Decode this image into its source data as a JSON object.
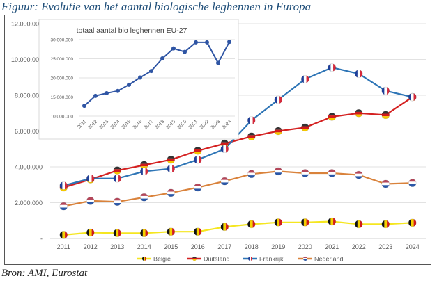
{
  "figure_title": "Figuur: Evolutie van het aantal biologische leghennen in Europa",
  "source": "Bron: AMI, Eurostat",
  "chart_data": [
    {
      "type": "line",
      "title": "",
      "xlabel": "",
      "ylabel": "",
      "x": [
        "2011",
        "2012",
        "2013",
        "2014",
        "2015",
        "2016",
        "2017",
        "2018",
        "2019",
        "2020",
        "2021",
        "2022",
        "2023",
        "2024"
      ],
      "y_ticks": [
        0,
        2000000,
        4000000,
        6000000,
        8000000,
        10000000,
        12000000
      ],
      "y_tick_labels": [
        "-",
        "2.000.000",
        "4.000.000",
        "6.000.000",
        "8.000.000",
        "10.000.000",
        "12.000.000"
      ],
      "ylim": [
        0,
        12000000
      ],
      "grid": true,
      "legend_position": "bottom",
      "series": [
        {
          "name": "België",
          "color": "#f5e620",
          "marker": "flag-be",
          "values": [
            200000,
            330000,
            300000,
            300000,
            380000,
            380000,
            650000,
            800000,
            900000,
            900000,
            950000,
            800000,
            800000,
            880000
          ]
        },
        {
          "name": "Duitsland",
          "color": "#d42020",
          "marker": "flag-de",
          "values": [
            2850000,
            3300000,
            3800000,
            4100000,
            4400000,
            4900000,
            5300000,
            5700000,
            6000000,
            6200000,
            6800000,
            7000000,
            6900000,
            7900000
          ]
        },
        {
          "name": "Frankrijk",
          "color": "#2e75b6",
          "marker": "flag-fr",
          "values": [
            2950000,
            3350000,
            3350000,
            3750000,
            3900000,
            4400000,
            5000000,
            6600000,
            7750000,
            8900000,
            9550000,
            9200000,
            8250000,
            7900000
          ]
        },
        {
          "name": "Nederland",
          "color": "#d9823b",
          "marker": "flag-nl",
          "values": [
            1800000,
            2100000,
            2050000,
            2300000,
            2550000,
            2850000,
            3200000,
            3600000,
            3750000,
            3650000,
            3650000,
            3550000,
            3050000,
            3100000
          ]
        }
      ]
    },
    {
      "type": "line",
      "title": "totaal aantal bio leghennen EU-27",
      "xlabel": "",
      "ylabel": "",
      "x": [
        "2011",
        "2012",
        "2013",
        "2014",
        "2015",
        "2016",
        "2017",
        "2018",
        "2019",
        "2020",
        "2021",
        "2022",
        "2023",
        "2024"
      ],
      "y_ticks": [
        10000000,
        15000000,
        20000000,
        25000000,
        30000000
      ],
      "y_tick_labels": [
        "10.000.000",
        "15.000.000",
        "20.000.000",
        "25.000.000",
        "30.000.000"
      ],
      "ylim": [
        10000000,
        30000000
      ],
      "grid": true,
      "legend_position": "none",
      "series": [
        {
          "name": "EU-27",
          "color": "#2f55a4",
          "marker": "circle",
          "values": [
            12700000,
            15300000,
            16000000,
            16600000,
            18200000,
            20100000,
            21800000,
            25100000,
            27700000,
            26800000,
            29300000,
            29300000,
            23900000,
            29400000
          ]
        }
      ]
    }
  ]
}
